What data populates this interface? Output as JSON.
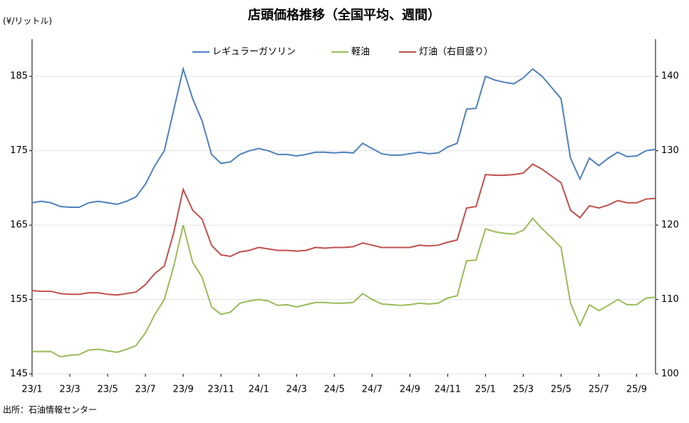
{
  "chart_data": {
    "type": "line",
    "title": "店頭価格推移（全国平均、週間）",
    "y_label": "(¥/リットル)",
    "source": "出所：石油情報センター",
    "categories": [
      "23/1",
      null,
      null,
      null,
      "23/3",
      null,
      null,
      null,
      "23/5",
      null,
      null,
      null,
      "23/7",
      null,
      null,
      null,
      "23/9",
      null,
      null,
      null,
      "23/11",
      null,
      null,
      null,
      "24/1",
      null,
      null,
      null,
      "24/3",
      null,
      null,
      null,
      "24/5",
      null,
      null,
      null,
      "24/7",
      null,
      null,
      null,
      "24/9",
      null,
      null,
      null,
      "24/11",
      null,
      null,
      null,
      "25/1",
      null,
      null,
      null,
      "25/3",
      null,
      null,
      null,
      "25/5",
      null,
      null,
      null,
      "25/7",
      null,
      null,
      null,
      "25/9",
      null,
      null
    ],
    "series": [
      {
        "name": "レギュラーガソリン",
        "color": "#4f81bd",
        "values": [
          168,
          168.2,
          168,
          167.5,
          167.4,
          167.4,
          168,
          168.2,
          168,
          167.8,
          168.2,
          168.8,
          170.5,
          173,
          175,
          180.5,
          186,
          182,
          179,
          174.5,
          173.3,
          173.5,
          174.5,
          175,
          175.3,
          175,
          174.5,
          174.5,
          174.3,
          174.5,
          174.8,
          174.8,
          174.7,
          174.8,
          174.7,
          176,
          175.3,
          174.6,
          174.4,
          174.4,
          174.6,
          174.8,
          174.6,
          174.7,
          175.5,
          176,
          180.6,
          180.7,
          185,
          184.5,
          184.2,
          184,
          184.8,
          186,
          185,
          183.5,
          182,
          174,
          171.2,
          174,
          173,
          174,
          174.8,
          174.2,
          174.3,
          175,
          175.2
        ]
      },
      {
        "name": "軽油",
        "color": "#9bbb59",
        "values": [
          148,
          148,
          148,
          147.3,
          147.5,
          147.6,
          148.2,
          148.3,
          148.1,
          147.9,
          148.3,
          148.8,
          150.5,
          153,
          155,
          159.5,
          165,
          160,
          158,
          154,
          153,
          153.3,
          154.5,
          154.8,
          155,
          154.8,
          154.2,
          154.3,
          154,
          154.3,
          154.6,
          154.6,
          154.5,
          154.5,
          154.6,
          155.8,
          155,
          154.4,
          154.3,
          154.2,
          154.3,
          154.5,
          154.4,
          154.5,
          155.2,
          155.5,
          160.2,
          160.3,
          164.5,
          164.1,
          163.9,
          163.8,
          164.3,
          165.9,
          164.5,
          163.3,
          162,
          154.5,
          151.5,
          154.3,
          153.5,
          154.2,
          155,
          154.3,
          154.3,
          155.2,
          155.3
        ]
      },
      {
        "name": "灯油（右目盛り）",
        "color": "#c0504d",
        "axis": "y2",
        "values": [
          111.2,
          111.1,
          111.1,
          110.8,
          110.7,
          110.7,
          110.9,
          110.9,
          110.7,
          110.6,
          110.8,
          111,
          112,
          113.5,
          114.5,
          119,
          124.8,
          122,
          120.8,
          117.3,
          116,
          115.8,
          116.4,
          116.6,
          117,
          116.8,
          116.6,
          116.6,
          116.5,
          116.6,
          117,
          116.9,
          117,
          117,
          117.1,
          117.6,
          117.3,
          117,
          117,
          117,
          117,
          117.3,
          117.2,
          117.3,
          117.7,
          118,
          122.3,
          122.5,
          126.8,
          126.7,
          126.7,
          126.8,
          127,
          128.2,
          127.5,
          126.6,
          125.7,
          122,
          121,
          122.6,
          122.3,
          122.7,
          123.3,
          123,
          123,
          123.5,
          123.6
        ]
      }
    ],
    "ylim": [
      145,
      190
    ],
    "yticks": [
      145,
      155,
      165,
      175,
      185
    ],
    "y2lim": [
      100,
      145
    ],
    "y2ticks": [
      100,
      110,
      120,
      130,
      140
    ],
    "grid": true
  }
}
